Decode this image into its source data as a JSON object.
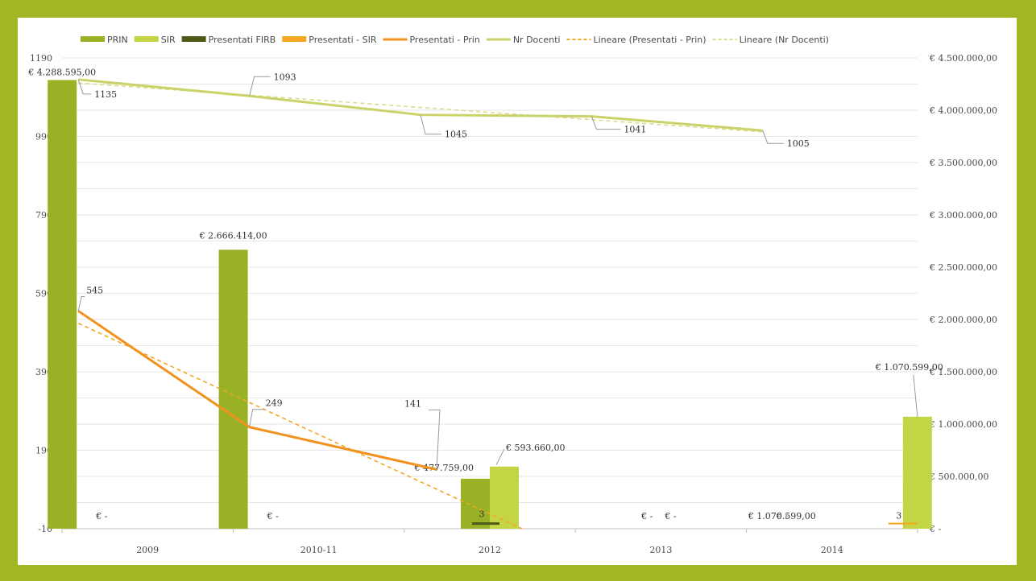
{
  "colors": {
    "frame": "#a3b624",
    "prin": "#99b125",
    "sir": "#c3d444",
    "firb": "#4c5a19",
    "pres_sir": "#f5a623",
    "pres_prin": "#f0921d",
    "docenti": "#c9d36a",
    "grid": "#e6e6e6"
  },
  "chart_data": {
    "type": "bar",
    "categories": [
      "2009",
      "2010-11",
      "2012",
      "2013",
      "2014"
    ],
    "y_left": {
      "min": -10,
      "max": 1190,
      "ticks": [
        "-10",
        "190",
        "390",
        "590",
        "790",
        "990",
        "1190"
      ]
    },
    "y_right": {
      "min": 0,
      "max": 4500000,
      "ticks": [
        "€ -",
        "€ 500.000,00",
        "€ 1.000.000,00",
        "€ 1.500.000,00",
        "€ 2.000.000,00",
        "€ 2.500.000,00",
        "€ 3.000.000,00",
        "€ 3.500.000,00",
        "€ 4.000.000,00",
        "€ 4.500.000,00"
      ]
    },
    "legend": {
      "position": "top",
      "entries": [
        "PRIN",
        "SIR",
        "Presentati FIRB",
        "Presentati - SIR",
        "Presentati - Prin",
        "Nr Docenti",
        "Lineare (Presentati - Prin)",
        "Lineare (Nr Docenti)"
      ]
    },
    "bar_series": [
      {
        "name": "PRIN",
        "axis": "right",
        "values": [
          4288595,
          2666414,
          477759,
          0,
          0
        ],
        "labels": [
          "€ 4.288.595,00",
          "€ 2.666.414,00",
          "€ 477.759,00",
          "€ -",
          "€ -"
        ]
      },
      {
        "name": "SIR",
        "axis": "right",
        "values": [
          0,
          0,
          593660,
          0,
          1070599
        ],
        "labels": [
          "€ -",
          "€ -",
          "€ 593.660,00",
          "€ -",
          "€ 1.070.599,00"
        ]
      }
    ],
    "line_series": [
      {
        "name": "Presentati FIRB",
        "axis": "left",
        "values": [
          null,
          null,
          3,
          null,
          null
        ],
        "labels": [
          "",
          "",
          "3",
          "",
          ""
        ]
      },
      {
        "name": "Presentati - SIR",
        "axis": "left",
        "values": [
          null,
          null,
          null,
          null,
          3
        ],
        "labels": [
          "",
          "",
          "",
          "",
          "3"
        ]
      },
      {
        "name": "Presentati - Prin",
        "axis": "left",
        "values": [
          545,
          249,
          141,
          null,
          null
        ],
        "labels": [
          "545",
          "249",
          "141",
          "",
          ""
        ]
      },
      {
        "name": "Nr Docenti",
        "axis": "left",
        "values": [
          1135,
          1093,
          1045,
          1041,
          1005
        ],
        "labels": [
          "1135",
          "1093",
          "1045",
          "1041",
          "1005"
        ]
      }
    ],
    "trend_lines": [
      {
        "name": "Lineare (Presentati - Prin)",
        "of": "Presentati - Prin"
      },
      {
        "name": "Lineare (Nr Docenti)",
        "of": "Nr Docenti"
      }
    ],
    "grid": true
  }
}
